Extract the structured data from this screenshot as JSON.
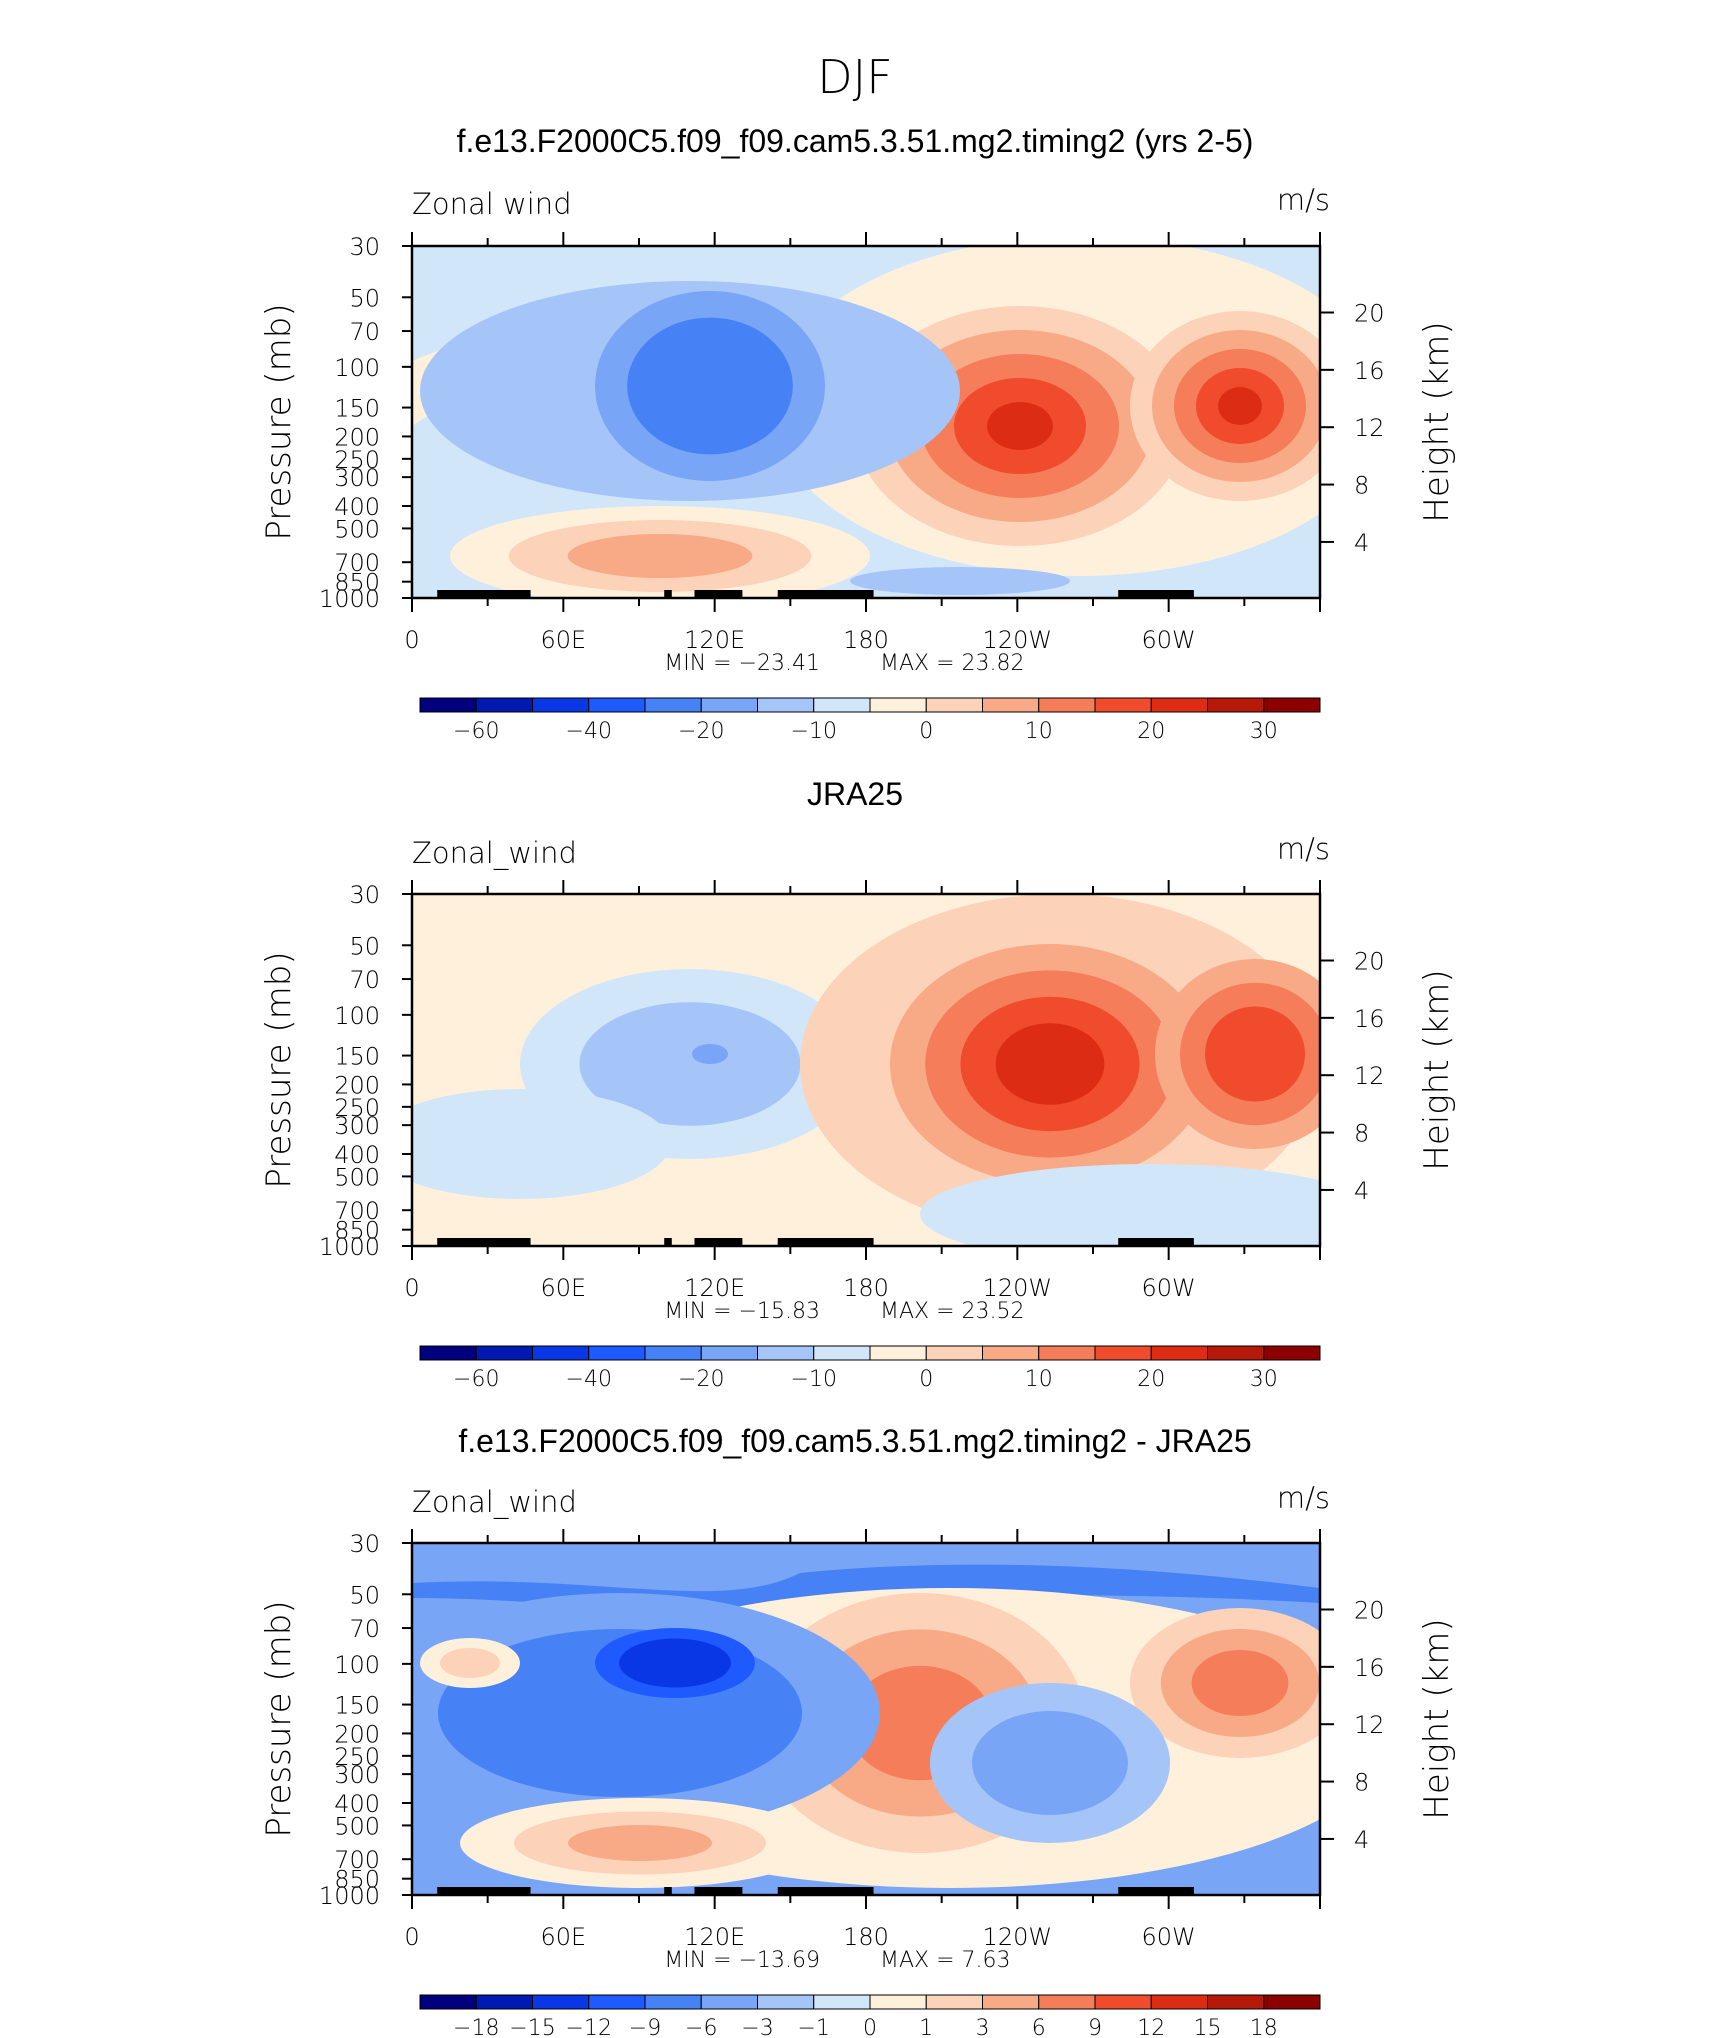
{
  "figure": {
    "title": "DJF"
  },
  "chart_data": [
    {
      "type": "heatmap",
      "title": "f.e13.F2000C5.f09_f09.cam5.3.51.mg2.timing2 (yrs 2-5)",
      "left_label": "Zonal wind",
      "right_label": "m/s",
      "ylabel": "Pressure (mb)",
      "ylabel_right": "Height (km)",
      "x_ticklabels": [
        "0",
        "60E",
        "120E",
        "180",
        "120W",
        "60W"
      ],
      "y_ticklabels": [
        "30",
        "50",
        "70",
        "100",
        "150",
        "200",
        "250",
        "300",
        "400",
        "500",
        "700",
        "850",
        "1000"
      ],
      "y_right_ticklabels": [
        "20",
        "16",
        "12",
        "8",
        "4"
      ],
      "min_text": "MIN = −23.41",
      "max_text": "MAX = 23.82",
      "min": -23.41,
      "max": 23.82,
      "colorbar_ticklabels": [
        "−60",
        "−40",
        "−20",
        "−10",
        "0",
        "10",
        "20",
        "30"
      ]
    },
    {
      "type": "heatmap",
      "title": "JRA25",
      "left_label": "Zonal_wind",
      "right_label": "m/s",
      "ylabel": "Pressure (mb)",
      "ylabel_right": "Height (km)",
      "x_ticklabels": [
        "0",
        "60E",
        "120E",
        "180",
        "120W",
        "60W"
      ],
      "y_ticklabels": [
        "30",
        "50",
        "70",
        "100",
        "150",
        "200",
        "250",
        "300",
        "400",
        "500",
        "700",
        "850",
        "1000"
      ],
      "y_right_ticklabels": [
        "20",
        "16",
        "12",
        "8",
        "4"
      ],
      "min_text": "MIN = −15.83",
      "max_text": "MAX = 23.52",
      "min": -15.83,
      "max": 23.52,
      "colorbar_ticklabels": [
        "−60",
        "−40",
        "−20",
        "−10",
        "0",
        "10",
        "20",
        "30"
      ]
    },
    {
      "type": "heatmap",
      "title": "f.e13.F2000C5.f09_f09.cam5.3.51.mg2.timing2 - JRA25",
      "left_label": "Zonal_wind",
      "right_label": "m/s",
      "ylabel": "Pressure (mb)",
      "ylabel_right": "Height (km)",
      "x_ticklabels": [
        "0",
        "60E",
        "120E",
        "180",
        "120W",
        "60W"
      ],
      "y_ticklabels": [
        "30",
        "50",
        "70",
        "100",
        "150",
        "200",
        "250",
        "300",
        "400",
        "500",
        "700",
        "850",
        "1000"
      ],
      "y_right_ticklabels": [
        "20",
        "16",
        "12",
        "8",
        "4"
      ],
      "min_text": "MIN = −13.69",
      "max_text": "MAX = 7.63",
      "min": -13.69,
      "max": 7.63,
      "colorbar_ticklabels": [
        "−18",
        "−15",
        "−12",
        "−9",
        "−6",
        "−3",
        "−1",
        "0",
        "1",
        "3",
        "6",
        "9",
        "12",
        "15",
        "18"
      ]
    }
  ],
  "colormap": [
    "#00007f",
    "#0019b2",
    "#0a37e6",
    "#1e5aff",
    "#4682f5",
    "#78a5f5",
    "#a5c5f8",
    "#d2e6fa",
    "#fff0dc",
    "#fcd2b9",
    "#f8aa87",
    "#f57d5a",
    "#f04b2d",
    "#dc2d14",
    "#b4190a",
    "#8c0000"
  ]
}
